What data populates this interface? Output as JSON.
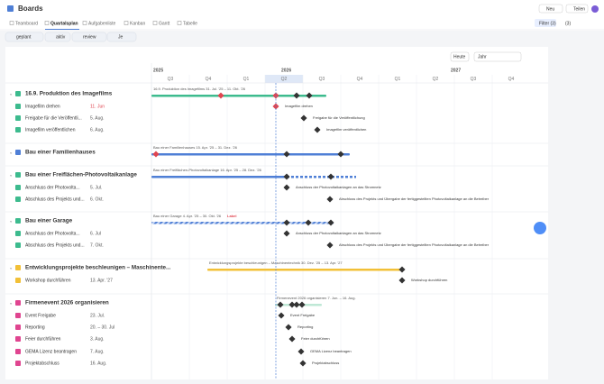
{
  "header": {
    "title": "Boards",
    "new": "Neu",
    "share": "Teilen"
  },
  "tabs": [
    "Teamboard",
    "Quartalsplan",
    "Aufgabenliste",
    "Kanban",
    "Gantt",
    "Tabelle"
  ],
  "toolbar": {
    "filter": "Filter (3)",
    "count": "(3)"
  },
  "filters": [
    "geplant",
    "aktiv",
    "review",
    "Je"
  ],
  "controls": {
    "today": "Heute",
    "zoom": "Jahr"
  },
  "timeline": {
    "years": [
      "2025",
      "2026",
      "2027"
    ],
    "quarters": [
      "Q3",
      "Q4",
      "Q1",
      "Q2",
      "Q3",
      "Q4",
      "Q1",
      "Q2",
      "Q3",
      "Q4"
    ]
  },
  "groups": [
    {
      "title": "16.9. Produktion des Imagefilms",
      "bar_label": "16.9. Produktion des Imagefilms  31. Jul. '25 – 11. Okt. '26",
      "items": [
        {
          "name": "Imagefilm drehen",
          "date": "11. Jun",
          "label": "Imagefilm drehen"
        },
        {
          "name": "Freigabe für die Veröffentli...",
          "date": "5. Aug.",
          "label": "Freigabe für die Veröffentlichung"
        },
        {
          "name": "Imagefilm veröffentlichen",
          "date": "6. Aug.",
          "label": "Imagefilm veröffentlichen"
        }
      ]
    },
    {
      "title": "Bau einer Familienhauses",
      "bar_label": "Bau einer Familienhauses  15. Apr. '25 – 31. Dez. '26",
      "items": []
    },
    {
      "title": "Bau einer Freiflächen-Photovoltaikanlage",
      "bar_label": "Bau einer Freiflächen-Photovoltaikanlage  16. Apr. '25 – 28. Dez. '26",
      "items": [
        {
          "name": "Anschluss der Photovolta...",
          "date": "5. Jul.",
          "label": "Anschluss der Photovoltaikanlagen an das Stromnetz"
        },
        {
          "name": "Abschluss des Projekts und...",
          "date": "6. Okt.",
          "label": "Abschluss des Projekts und Übergabe der fertiggestellten Photovoltaikanlage an die Betreiber"
        }
      ]
    },
    {
      "title": "Bau einer Garage",
      "bar_label": "Bau einer Garage  4. Apr. '25 – 30. Okt. '26",
      "tag": "Label",
      "items": [
        {
          "name": "Anschluss der Photovolta...",
          "date": "6. Jul",
          "label": "Anschluss der Photovoltaikanlagen an das Stromnetz"
        },
        {
          "name": "Abschluss des Projekts und...",
          "date": "7. Okt.",
          "label": "Abschluss des Projekts und Übergabe der fertiggestellten Photovoltaikanlage an die Betreiber"
        }
      ]
    },
    {
      "title": "Entwicklungsprojekte beschleunigen – Maschinente...",
      "bar_label": "Entwicklungsprojekte beschleunigen – Maschinentechnik  30. Dez. '25 – 13. Apr. '27",
      "items": [
        {
          "name": "Workshop durchführen",
          "date": "13. Apr. '27",
          "label": "Workshop durchführen"
        }
      ]
    },
    {
      "title": "Firmenevent 2026 organisieren",
      "bar_label": "Firmenevent 2026 organisieren  7. Jun. – 16. Aug.",
      "items": [
        {
          "name": "Event Freigabe",
          "date": "23. Jul.",
          "label": "Event Freigabe"
        },
        {
          "name": "Reporting",
          "date": "20. – 30. Jul",
          "label": "Reporting"
        },
        {
          "name": "Feier durchführen",
          "date": "3. Aug.",
          "label": "Feier durchführen"
        },
        {
          "name": "GEMA Lizenz beantragen",
          "date": "7. Aug.",
          "label": "GEMA Lizenz beantragen"
        },
        {
          "name": "Projektabschluss",
          "date": "16. Aug.",
          "label": "Projektabschluss"
        }
      ]
    }
  ]
}
